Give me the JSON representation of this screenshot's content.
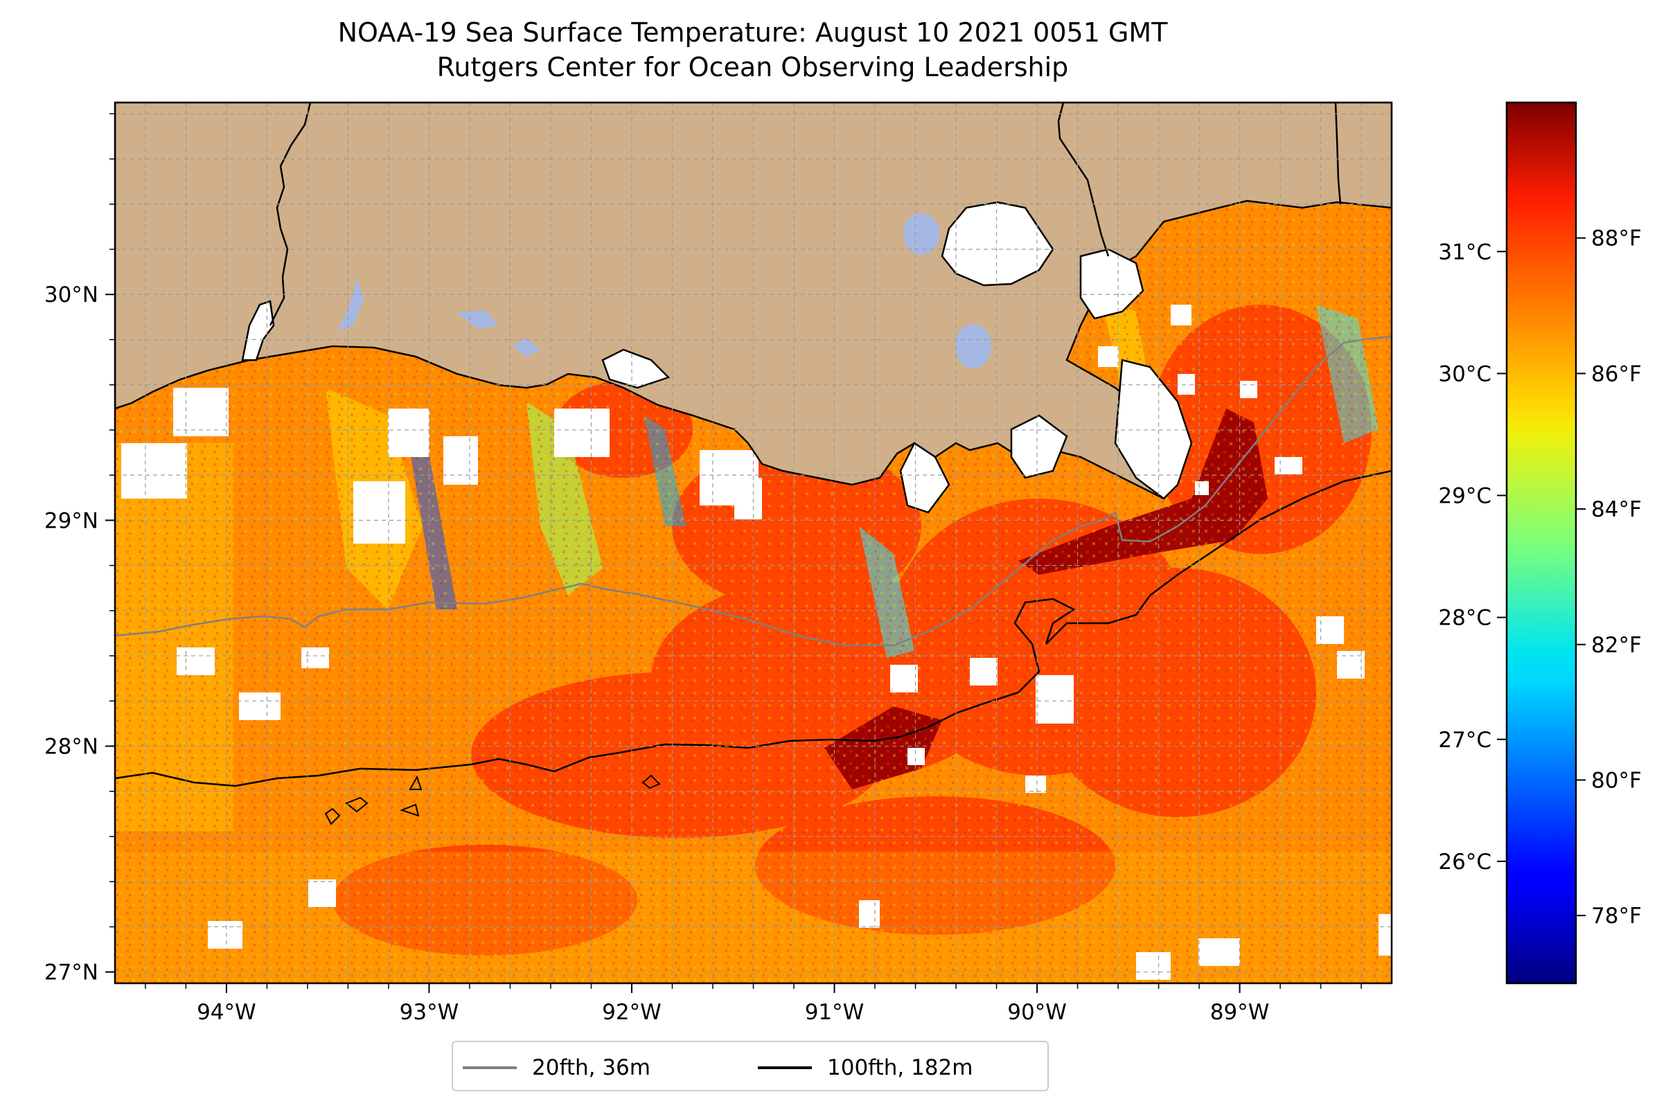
{
  "title": {
    "line1": "NOAA-19 Sea Surface Temperature: August 10 2021 0051 GMT",
    "line2": "Rutgers Center for Ocean Observing Leadership"
  },
  "map": {
    "lon_range": [
      -94.55,
      -88.25
    ],
    "lat_range": [
      26.95,
      30.85
    ],
    "lon_ticks": [
      {
        "value": -94,
        "label": "94°W"
      },
      {
        "value": -93,
        "label": "93°W"
      },
      {
        "value": -92,
        "label": "92°W"
      },
      {
        "value": -91,
        "label": "91°W"
      },
      {
        "value": -90,
        "label": "90°W"
      },
      {
        "value": -89,
        "label": "89°W"
      }
    ],
    "lat_ticks": [
      {
        "value": 27,
        "label": "27°N"
      },
      {
        "value": 28,
        "label": "28°N"
      },
      {
        "value": 29,
        "label": "29°N"
      },
      {
        "value": 30,
        "label": "30°N"
      }
    ],
    "gridlines": true,
    "colors": {
      "land": "#cfb08a",
      "coastline": "#000000",
      "lakes": "#a5b8e3",
      "isobath_20fth": "#808080",
      "isobath_100fth": "#000000"
    }
  },
  "colorbar": {
    "colormap": "jet",
    "celsius_ticks": [
      {
        "value": 26,
        "label": "26°C"
      },
      {
        "value": 27,
        "label": "27°C"
      },
      {
        "value": 28,
        "label": "28°C"
      },
      {
        "value": 29,
        "label": "29°C"
      },
      {
        "value": 30,
        "label": "30°C"
      },
      {
        "value": 31,
        "label": "31°C"
      }
    ],
    "fahrenheit_ticks": [
      {
        "value": 78,
        "label": "78°F"
      },
      {
        "value": 80,
        "label": "80°F"
      },
      {
        "value": 82,
        "label": "82°F"
      },
      {
        "value": 84,
        "label": "84°F"
      },
      {
        "value": 86,
        "label": "86°F"
      },
      {
        "value": 88,
        "label": "88°F"
      }
    ],
    "range_f": [
      77,
      90
    ]
  },
  "legend": {
    "items": [
      {
        "label": "20fth, 36m",
        "color": "#808080"
      },
      {
        "label": "100fth, 182m",
        "color": "#000000"
      }
    ]
  }
}
